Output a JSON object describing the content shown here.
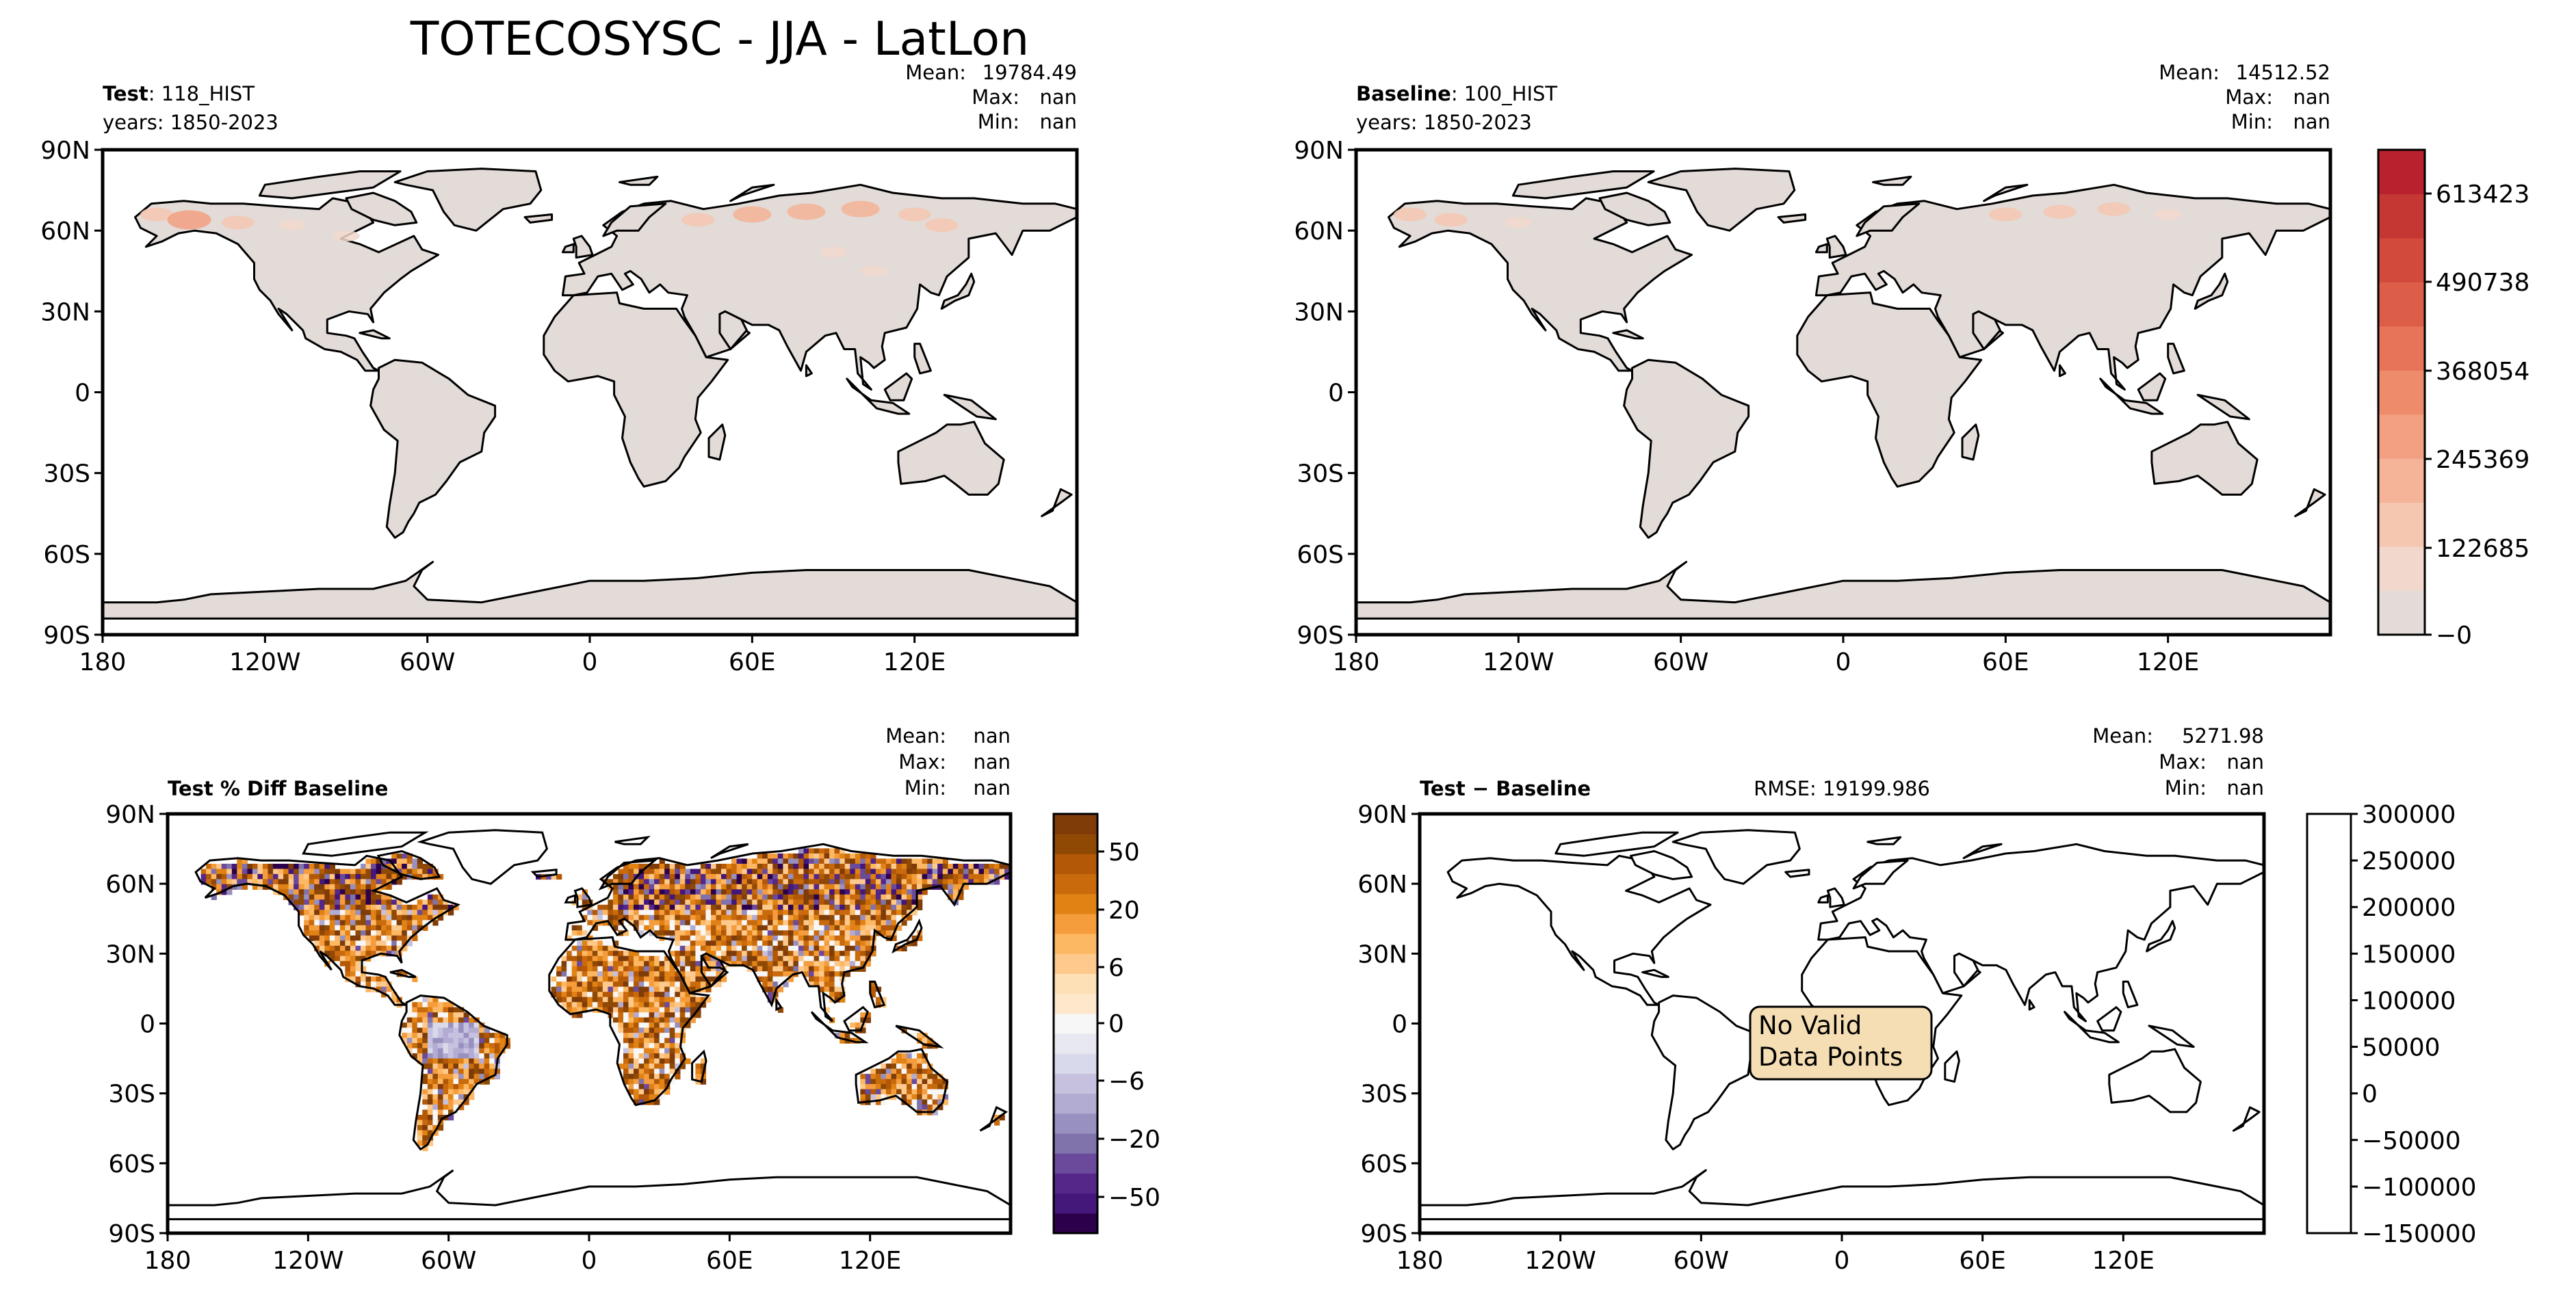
{
  "figure": {
    "title": "TOTECOSYSC - JJA - LatLon"
  },
  "x_ticks": [
    "180",
    "120W",
    "60W",
    "0",
    "60E",
    "120E"
  ],
  "y_ticks": [
    "90N",
    "60N",
    "30N",
    "0",
    "30S",
    "60S",
    "90S"
  ],
  "stat_labels": {
    "mean": "Mean:",
    "max": "Max:",
    "min": "Min:"
  },
  "colors": {
    "land_gray": "#e2dbd7",
    "ocean": "#ffffff",
    "coast": "#000000",
    "reds": [
      "#e2dbd7",
      "#f2d8cc",
      "#f5c7b1",
      "#f5b398",
      "#f2a081",
      "#ee8b6b",
      "#e77458",
      "#dd5e48",
      "#d14a3c",
      "#c43733",
      "#b8212d"
    ],
    "puor": [
      "#2d004b",
      "#44187a",
      "#542788",
      "#6b4a9c",
      "#8073ac",
      "#9890bf",
      "#b2abd2",
      "#c6c1de",
      "#d8daeb",
      "#e8e8f2",
      "#f7f7f7",
      "#fde8cc",
      "#fee0b6",
      "#fdc98c",
      "#fdb863",
      "#f59d3c",
      "#e08214",
      "#c96a0c",
      "#b35806",
      "#8f4905",
      "#7f3b08"
    ]
  },
  "chart_data": [
    {
      "type": "heatmap",
      "id": "test",
      "header_bold": "Test",
      "header_rest": ": 118_HIST",
      "years": "years: 1850-2023",
      "stats": {
        "mean": "19784.49",
        "max": "nan",
        "min": "nan"
      },
      "xlim": [
        -180,
        180
      ],
      "ylim": [
        -90,
        90
      ],
      "fill": "land_gray",
      "hotspots": [
        {
          "lon": -160,
          "lat": 66,
          "level": 2
        },
        {
          "lon": -148,
          "lat": 64,
          "level": 4
        },
        {
          "lon": -130,
          "lat": 63,
          "level": 2
        },
        {
          "lon": -110,
          "lat": 62,
          "level": 1
        },
        {
          "lon": -90,
          "lat": 58,
          "level": 1
        },
        {
          "lon": 40,
          "lat": 64,
          "level": 2
        },
        {
          "lon": 60,
          "lat": 66,
          "level": 3
        },
        {
          "lon": 80,
          "lat": 67,
          "level": 3
        },
        {
          "lon": 100,
          "lat": 68,
          "level": 3
        },
        {
          "lon": 120,
          "lat": 66,
          "level": 2
        },
        {
          "lon": 90,
          "lat": 52,
          "level": 1
        },
        {
          "lon": 105,
          "lat": 45,
          "level": 1
        },
        {
          "lon": 130,
          "lat": 62,
          "level": 2
        }
      ]
    },
    {
      "type": "heatmap",
      "id": "baseline",
      "header_bold": "Baseline",
      "header_rest": ": 100_HIST",
      "years": "years: 1850-2023",
      "stats": {
        "mean": "14512.52",
        "max": "nan",
        "min": "nan"
      },
      "xlim": [
        -180,
        180
      ],
      "ylim": [
        -90,
        90
      ],
      "fill": "land_gray",
      "hotspots": [
        {
          "lon": -160,
          "lat": 66,
          "level": 2
        },
        {
          "lon": -145,
          "lat": 64,
          "level": 2
        },
        {
          "lon": -120,
          "lat": 63,
          "level": 1
        },
        {
          "lon": 60,
          "lat": 66,
          "level": 2
        },
        {
          "lon": 80,
          "lat": 67,
          "level": 2
        },
        {
          "lon": 100,
          "lat": 68,
          "level": 2
        },
        {
          "lon": 120,
          "lat": 66,
          "level": 1
        }
      ],
      "colorbar": {
        "ticks": [
          "613423",
          "490738",
          "368054",
          "245369",
          "122685",
          "−0"
        ],
        "levels": 11
      }
    },
    {
      "type": "heatmap",
      "id": "pctdiff",
      "header_bold": "Test % Diff Baseline",
      "stats": {
        "mean": "nan",
        "max": "nan",
        "min": "nan"
      },
      "xlim": [
        -180,
        180
      ],
      "ylim": [
        -90,
        90
      ],
      "fill": "diverging",
      "colorbar": {
        "ticks": [
          "50",
          "20",
          "6",
          "0",
          "−6",
          "−20",
          "−50"
        ],
        "levels": 21
      }
    },
    {
      "type": "heatmap",
      "id": "diff",
      "header_bold": "Test − Baseline",
      "rmse": "RMSE: 19199.986",
      "stats": {
        "mean": "5271.98",
        "max": "nan",
        "min": "nan"
      },
      "xlim": [
        -180,
        180
      ],
      "ylim": [
        -90,
        90
      ],
      "fill": "none",
      "annotation": [
        "No Valid",
        "Data Points"
      ],
      "colorbar": {
        "ticks": [
          "300000",
          "250000",
          "200000",
          "150000",
          "100000",
          "50000",
          "0",
          "−50000",
          "−100000",
          "−150000"
        ]
      }
    }
  ]
}
